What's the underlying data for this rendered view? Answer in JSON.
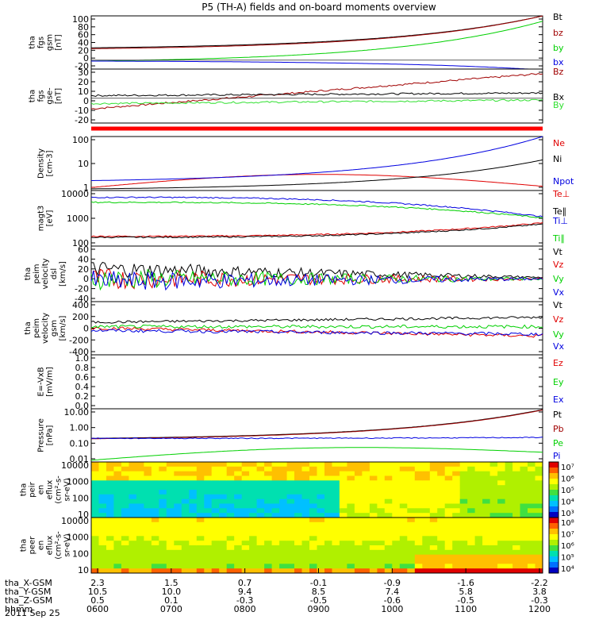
{
  "title": "P5 (TH-A) fields and on-board moments overview",
  "date": "2011 Sep 25",
  "colors": {
    "black": "#000000",
    "red": "#e00000",
    "green": "#00d000",
    "blue": "#0000e0",
    "darkred": "#a00000",
    "lime": "#30e030"
  },
  "chart_data": [
    {
      "type": "line",
      "id": "p1",
      "ylabel": [
        "tha",
        "fgs",
        "gsm",
        "[nT]"
      ],
      "yticks": [
        "100",
        "80",
        "60",
        "40",
        "20",
        "0",
        "-20"
      ],
      "ylim": [
        -20,
        100
      ],
      "series": [
        {
          "name": "Bt",
          "color": "black",
          "start": 28,
          "end": 100,
          "shape": "exp"
        },
        {
          "name": "bz",
          "color": "darkred",
          "start": 26,
          "end": 100,
          "shape": "exp"
        },
        {
          "name": "by",
          "color": "green",
          "start": -2,
          "end": 88,
          "shape": "exp"
        },
        {
          "name": "bx",
          "color": "blue",
          "start": -2,
          "end": -22,
          "shape": "exp"
        }
      ]
    },
    {
      "type": "line",
      "id": "p2",
      "ylabel": [
        "tha",
        "fgs",
        "gse-",
        "[nT]"
      ],
      "yticks": [
        "30",
        "20",
        "10",
        "0",
        "-10",
        "-20"
      ],
      "ylim": [
        -28,
        33
      ],
      "series": [
        {
          "name": "Bz",
          "color": "darkred",
          "start": -12,
          "end": 28,
          "shape": "lin"
        },
        {
          "name": "Bx",
          "color": "black",
          "start": 3,
          "end": 6,
          "shape": "lin"
        },
        {
          "name": "By",
          "color": "lime",
          "start": -6,
          "end": -2,
          "shape": "lin"
        }
      ]
    },
    {
      "type": "line",
      "id": "p3",
      "ylabel": [
        "Density",
        "[cm-3]"
      ],
      "yticks": [
        "100",
        "10",
        "1"
      ],
      "log": true,
      "ylim": [
        0.5,
        200
      ],
      "series": [
        {
          "name": "Ne",
          "color": "red",
          "start": 0.7,
          "end": 0.8,
          "shape": "hump"
        },
        {
          "name": "Ni",
          "color": "black",
          "start": 0.6,
          "end": 15,
          "shape": "exp"
        },
        {
          "name": "Npot",
          "color": "blue",
          "start": 1.5,
          "end": 200,
          "shape": "exp"
        }
      ]
    },
    {
      "type": "line",
      "id": "p4",
      "ylabel": [
        "magt3",
        "[eV]"
      ],
      "yticks": [
        "10000",
        "1000",
        "100"
      ],
      "log": true,
      "ylim": [
        30,
        15000
      ],
      "series": [
        {
          "name": "Te⊥",
          "color": "red",
          "start": 90,
          "end": 400,
          "shape": "flat"
        },
        {
          "name": "Te∥",
          "color": "black",
          "start": 80,
          "end": 350,
          "shape": "flat"
        },
        {
          "name": "Ti⊥",
          "color": "blue",
          "start": 7000,
          "end": 800,
          "shape": "flat"
        },
        {
          "name": "Ti∥",
          "color": "green",
          "start": 4000,
          "end": 700,
          "shape": "flat"
        }
      ]
    },
    {
      "type": "line",
      "id": "p5",
      "ylabel": [
        "tha",
        "peim",
        "velocity",
        "dsl",
        "[km/s]"
      ],
      "yticks": [
        "60",
        "40",
        "20",
        "0",
        "-20",
        "-40"
      ],
      "ylim": [
        -45,
        65
      ],
      "series": [
        {
          "name": "Vt",
          "color": "black",
          "start": 20,
          "end": 3,
          "shape": "noise"
        },
        {
          "name": "Vz",
          "color": "red",
          "start": 0,
          "end": 0,
          "shape": "noise"
        },
        {
          "name": "Vy",
          "color": "green",
          "start": 0,
          "end": 0,
          "shape": "noise"
        },
        {
          "name": "Vx",
          "color": "blue",
          "start": -5,
          "end": 0,
          "shape": "noise"
        }
      ]
    },
    {
      "type": "line",
      "id": "p6",
      "ylabel": [
        "tha",
        "peim",
        "velocity",
        "gsm",
        "[km/s]"
      ],
      "yticks": [
        "400",
        "200",
        "0",
        "-200",
        "-400"
      ],
      "ylim": [
        -420,
        430
      ],
      "series": [
        {
          "name": "Vt",
          "color": "black",
          "start": 100,
          "end": 180,
          "shape": "noise"
        },
        {
          "name": "Vz",
          "color": "red",
          "start": 10,
          "end": -120,
          "shape": "noise"
        },
        {
          "name": "Vy",
          "color": "green",
          "start": 30,
          "end": 30,
          "shape": "noise"
        },
        {
          "name": "Vx",
          "color": "blue",
          "start": -30,
          "end": -90,
          "shape": "noise"
        }
      ]
    },
    {
      "type": "line",
      "id": "p7",
      "ylabel": [
        "E=-VxB",
        "[mV/m]"
      ],
      "yticks": [
        "1.0",
        "0.8",
        "0.6",
        "0.4",
        "0.2",
        "0.0"
      ],
      "ylim": [
        0,
        1
      ],
      "series": [
        {
          "name": "Ez",
          "color": "red"
        },
        {
          "name": "Ey",
          "color": "green"
        },
        {
          "name": "Ex",
          "color": "blue"
        }
      ]
    },
    {
      "type": "line",
      "id": "p8",
      "ylabel": [
        "Pressure",
        "[nPa]"
      ],
      "yticks": [
        "10.00",
        "1.00",
        "0.10",
        "0.01"
      ],
      "log": true,
      "ylim": [
        0.006,
        40
      ],
      "series": [
        {
          "name": "Pt",
          "color": "black",
          "start": 0.3,
          "end": 35,
          "shape": "exp"
        },
        {
          "name": "Pb",
          "color": "darkred",
          "start": 0.28,
          "end": 33,
          "shape": "exp"
        },
        {
          "name": "Pe",
          "color": "green",
          "start": 0.008,
          "end": 0.03,
          "shape": "hump"
        },
        {
          "name": "Pi",
          "color": "blue",
          "start": 0.3,
          "end": 0.35,
          "shape": "flat"
        }
      ]
    },
    {
      "type": "heatmap",
      "id": "p9",
      "ylabel": [
        "tha",
        "peir",
        "en",
        "eflux",
        "(cm²-s-",
        "sr-eV)"
      ],
      "yticks": [
        "10000",
        "1000",
        "100",
        "10"
      ],
      "colorbar": [
        "10⁷",
        "10⁶",
        "10⁵",
        "10⁴",
        "10³"
      ]
    },
    {
      "type": "heatmap",
      "id": "p10",
      "ylabel": [
        "tha",
        "peer",
        "en",
        "eflux",
        "(cm²-s-",
        "sr-eV)"
      ],
      "yticks": [
        "10000",
        "1000",
        "100",
        "10"
      ],
      "colorbar": [
        "10⁸",
        "10⁷",
        "10⁶",
        "10⁵",
        "10⁴"
      ]
    }
  ],
  "xaxis": {
    "rows": [
      {
        "label": "tha_X-GSM",
        "values": [
          "2.3",
          "1.5",
          "0.7",
          "-0.1",
          "-0.9",
          "-1.6",
          "-2.2"
        ]
      },
      {
        "label": "tha_Y-GSM",
        "values": [
          "10.5",
          "10.0",
          "9.4",
          "8.5",
          "7.4",
          "5.8",
          "3.8"
        ]
      },
      {
        "label": "tha_Z-GSM",
        "values": [
          "0.5",
          "0.1",
          "-0.3",
          "-0.5",
          "-0.6",
          "-0.5",
          "-0.3"
        ]
      },
      {
        "label": "hhmm",
        "values": [
          "0600",
          "0700",
          "0800",
          "0900",
          "1000",
          "1100",
          "1200"
        ]
      }
    ]
  }
}
